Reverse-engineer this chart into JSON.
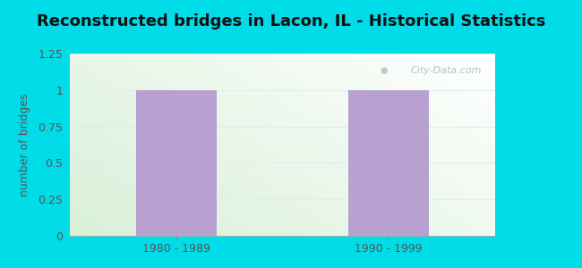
{
  "title": "Reconstructed bridges in Lacon, IL - Historical Statistics",
  "categories": [
    "1980 - 1989",
    "1990 - 1999"
  ],
  "values": [
    1,
    1
  ],
  "bar_color": "#b8a0d0",
  "ylabel": "number of bridges",
  "ylim": [
    0,
    1.25
  ],
  "yticks": [
    0,
    0.25,
    0.5,
    0.75,
    1,
    1.25
  ],
  "background_outer": "#00dce8",
  "title_fontsize": 13,
  "ylabel_fontsize": 9,
  "tick_fontsize": 9,
  "tick_color": "#555555",
  "ylabel_color": "#555555",
  "title_color": "#111111",
  "watermark": "City-Data.com",
  "watermark_color": "#99bbbb",
  "grid_color": "#ddeeee",
  "bar_width": 0.38
}
